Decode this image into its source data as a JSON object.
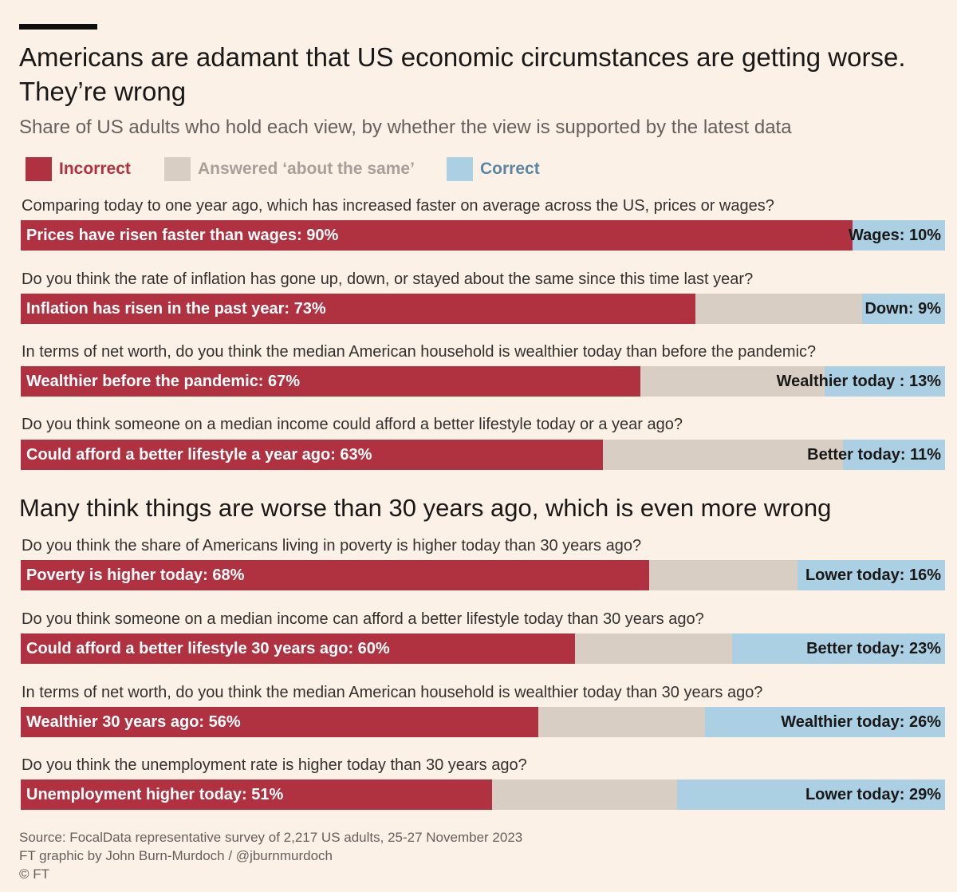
{
  "colors": {
    "incorrect": "#b03240",
    "same": "#d8cec4",
    "correct": "#abd0e4",
    "background": "#fcf1e6"
  },
  "title_line1": "Americans are adamant that US economic circumstances are getting worse.",
  "title_line2": "They’re wrong",
  "subtitle": "Share of US adults who hold each view, by whether the view is supported by the latest data",
  "legend": {
    "incorrect": "Incorrect",
    "same": "Answered ‘about the same’",
    "correct": "Correct"
  },
  "section2_title": "Many think things are worse than 30 years ago, which is even more wrong",
  "footer": {
    "source": "Source: FocalData representative survey of 2,217 US adults, 25-27 November 2023",
    "credit": "FT graphic by John Burn-Murdoch / @jburnmurdoch",
    "copyright": "© FT"
  },
  "chart_data": {
    "type": "bar",
    "orientation": "horizontal-stacked-100",
    "series_names": [
      "Incorrect",
      "Answered ‘about the same’",
      "Correct"
    ],
    "unit": "%",
    "rows": [
      {
        "question": "Comparing today to one year ago, which has increased faster on average across the US, prices or wages?",
        "incorrect": 90,
        "same": 0,
        "correct": 10,
        "incorrect_label": "Prices have risen faster than wages: 90%",
        "correct_label": "Wages: 10%"
      },
      {
        "question": "Do you think the rate of inflation has gone up, down, or stayed about the same since this time last year?",
        "incorrect": 73,
        "same": 18,
        "correct": 9,
        "incorrect_label": "Inflation has risen in the past year: 73%",
        "correct_label": "Down: 9%"
      },
      {
        "question": "In terms of net worth, do you think the median American household is wealthier today than before the pandemic?",
        "incorrect": 67,
        "same": 20,
        "correct": 13,
        "incorrect_label": "Wealthier before the pandemic: 67%",
        "correct_label": "Wealthier today : 13%"
      },
      {
        "question": "Do you think someone on a median income could afford a better lifestyle today or a year ago?",
        "incorrect": 63,
        "same": 26,
        "correct": 11,
        "incorrect_label": "Could afford a better lifestyle a year ago: 63%",
        "correct_label": "Better today: 11%"
      },
      {
        "question": "Do you think the share of Americans living in poverty is higher today than 30 years ago?",
        "incorrect": 68,
        "same": 16,
        "correct": 16,
        "incorrect_label": "Poverty is higher today: 68%",
        "correct_label": "Lower today: 16%"
      },
      {
        "question": "Do you think someone on a median income can afford a better lifestyle today than 30 years ago?",
        "incorrect": 60,
        "same": 17,
        "correct": 23,
        "incorrect_label": "Could afford a better lifestyle 30 years ago: 60%",
        "correct_label": "Better today: 23%"
      },
      {
        "question": "In terms of net worth, do you think the median American household is wealthier today than 30 years ago?",
        "incorrect": 56,
        "same": 18,
        "correct": 26,
        "incorrect_label": "Wealthier 30 years ago: 56%",
        "correct_label": "Wealthier today: 26%"
      },
      {
        "question": "Do you think the unemployment rate is higher today than 30 years ago?",
        "incorrect": 51,
        "same": 20,
        "correct": 29,
        "incorrect_label": "Unemployment higher today: 51%",
        "correct_label": "Lower today: 29%"
      }
    ]
  }
}
